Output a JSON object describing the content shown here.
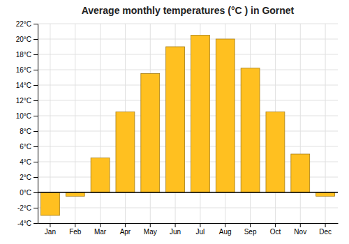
{
  "chart_data": {
    "type": "bar",
    "title": "Average monthly temperatures (°C ) in Gornet",
    "categories": [
      "Jan",
      "Feb",
      "Mar",
      "Apr",
      "May",
      "Jun",
      "Jul",
      "Aug",
      "Sep",
      "Oct",
      "Nov",
      "Dec"
    ],
    "values": [
      -3.0,
      -0.5,
      4.5,
      10.5,
      15.5,
      19.0,
      20.5,
      20.0,
      16.2,
      10.5,
      5.0,
      -0.5
    ],
    "color": "#FFC020",
    "ylim": [
      -4,
      22
    ],
    "yticks": [
      {
        "value": -4,
        "label": "-4°C"
      },
      {
        "value": -2,
        "label": "-2°C"
      },
      {
        "value": 0,
        "label": "0°C"
      },
      {
        "value": 2,
        "label": "2°C"
      },
      {
        "value": 4,
        "label": "4°C"
      },
      {
        "value": 6,
        "label": "6°C"
      },
      {
        "value": 8,
        "label": "8°C"
      },
      {
        "value": 10,
        "label": "10°C"
      },
      {
        "value": 12,
        "label": "12°C"
      },
      {
        "value": 14,
        "label": "14°C"
      },
      {
        "value": 16,
        "label": "16°C"
      },
      {
        "value": 18,
        "label": "18°C"
      },
      {
        "value": 20,
        "label": "20°C"
      },
      {
        "value": 22,
        "label": "22°C"
      }
    ],
    "grid": true
  }
}
